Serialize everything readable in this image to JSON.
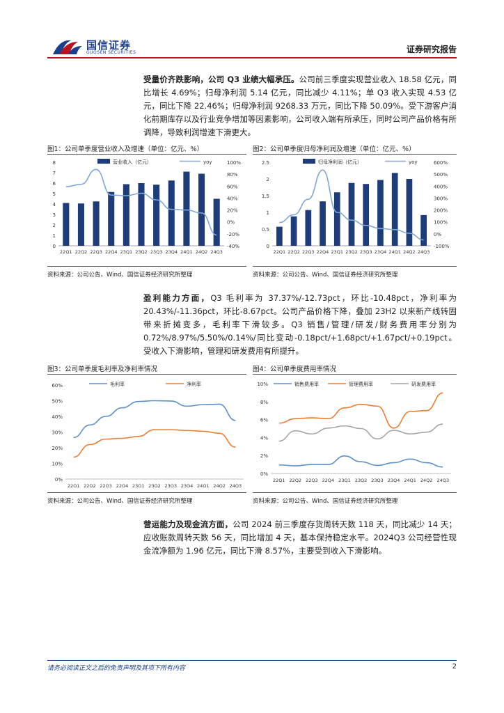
{
  "header": {
    "logo_cn": "国信证券",
    "logo_en": "GUOSEN SECURITIES",
    "report_type": "证券研究报告"
  },
  "paragraphs": {
    "p1_bold": "受量价齐跌影响，公司 Q3 业绩大幅承压。",
    "p1_rest": "公司前三季度实现营业收入 18.58 亿元，同比增长 4.69%；归母净利润 5.14 亿元，同比减少 4.11%；单 Q3 收入实现 4.53 亿元，同比下降 22.46%；归母净利润 9268.33 万元，同比下降 50.09%。受下游客户消化前期库存以及行业竞争增加等因素影响，公司收入端有所承压，同时公司产品价格有所调降，导致利润增速下滑更大。",
    "p2_bold": "盈利能力方面，",
    "p2_rest": "Q3 毛利率为 37.37%/-12.73pct，环比-10.48pct，净利率为 20.43%/-11.36pct，环比-8.67pct。公司产品价格下降，叠加 23H2 以来新产线转固带来折摊变多，毛利率下滑较多。Q3 销售/管理/研发/财务费用率分别为 0.72%/8.97%/5.50%/0.14%/同比变动-0.18pct/+1.68pct/+1.67pct/+0.19pct。受收入下滑影响，管理和研发费用有所提升。",
    "p3_bold": "营运能力及现金流方面，",
    "p3_rest": "公司 2024 前三季度存货周转天数 118 天，同比减少 14 天；应收账款周转天数 56 天，同比增加 4 天，基本保持稳定水平。2024Q3 公司经营性现金流净额为 1.96 亿元，同比下滑 8.57%，主要受到收入下滑影响。"
  },
  "figures": {
    "fig1_title": "图1：公司单季度营业收入及增速（单位：亿元、%）",
    "fig2_title": "图2：公司单季度归母净利润及增速（单位：亿元、%）",
    "fig3_title": "图3：公司单季度毛利率及净利率情况",
    "fig4_title": "图4：公司单季度费用率情况",
    "source": "资料来源：公司公告、Wind、国信证券经济研究所整理"
  },
  "footer": {
    "disclaimer": "请务必阅读正文之后的免责声明及其项下所有内容",
    "page": "2"
  },
  "colors": {
    "brand_red": "#b7141e",
    "brand_blue": "#1b3f8c",
    "bar": "#1f3c7a",
    "line_blue": "#7ea7d8",
    "line_orange": "#ee7d31",
    "line_gray": "#a5a5a5",
    "line_steel": "#5b8fc8"
  },
  "chart_data": [
    {
      "type": "bar",
      "categories": [
        "22Q1",
        "22Q2",
        "22Q3",
        "22Q4",
        "23Q1",
        "23Q2",
        "23Q3",
        "23Q4",
        "24Q1",
        "24Q2",
        "24Q3"
      ],
      "series": [
        {
          "name": "营业收入（亿元）",
          "values": [
            4.1,
            4.05,
            4.25,
            5.15,
            5.9,
            6.0,
            5.85,
            6.25,
            7.1,
            6.9,
            4.5
          ]
        },
        {
          "name": "yoy",
          "values": [
            59,
            63,
            88,
            45,
            44,
            48,
            37,
            21,
            20,
            15,
            -22
          ]
        }
      ],
      "ylim_left": [
        0,
        8
      ],
      "ylim_right": [
        -40,
        100
      ],
      "left_ticks": [
        "0",
        "1",
        "2",
        "3",
        "4",
        "5",
        "6",
        "7",
        "8"
      ],
      "right_ticks": [
        "-40%",
        "-20%",
        "0%",
        "20%",
        "40%",
        "60%",
        "80%",
        "100%"
      ]
    },
    {
      "type": "bar",
      "categories": [
        "22Q1",
        "22Q2",
        "22Q3",
        "22Q4",
        "23Q1",
        "23Q2",
        "23Q3",
        "23Q4",
        "24Q1",
        "24Q2",
        "24Q3"
      ],
      "series": [
        {
          "name": "归母净利润（亿元）",
          "values": [
            0.57,
            0.88,
            1.07,
            1.33,
            1.6,
            1.88,
            1.85,
            1.97,
            2.18,
            2.0,
            0.92
          ]
        },
        {
          "name": "yoy",
          "values": [
            95,
            160,
            290,
            535,
            180,
            115,
            70,
            45,
            35,
            5,
            -50
          ]
        }
      ],
      "ylim_left": [
        0,
        2.5
      ],
      "ylim_right": [
        -100,
        600
      ],
      "left_ticks": [
        "0",
        "0.5",
        "1",
        "1.5",
        "2",
        "2.5"
      ],
      "right_ticks": [
        "-100%",
        "0%",
        "100%",
        "200%",
        "300%",
        "400%",
        "500%",
        "600%"
      ]
    },
    {
      "type": "line",
      "categories": [
        "22Q1",
        "22Q2",
        "22Q3",
        "22Q4",
        "23Q1",
        "23Q2",
        "23Q3",
        "23Q4",
        "24Q1",
        "24Q2",
        "24Q3"
      ],
      "series": [
        {
          "name": "毛利率",
          "values": [
            26.5,
            34.5,
            40,
            45.5,
            49.5,
            50,
            49.8,
            46.5,
            47.5,
            47.8,
            37.4
          ]
        },
        {
          "name": "净利率",
          "values": [
            14,
            22,
            25.5,
            26,
            27.2,
            31.5,
            31.5,
            31,
            30.5,
            29.2,
            20.4
          ]
        }
      ],
      "ylim": [
        0,
        60
      ],
      "ticks": [
        "0%",
        "10%",
        "20%",
        "30%",
        "40%",
        "50%",
        "60%"
      ]
    },
    {
      "type": "line",
      "categories": [
        "22Q1",
        "22Q2",
        "22Q3",
        "22Q4",
        "23Q1",
        "23Q2",
        "23Q3",
        "23Q4",
        "24Q1",
        "24Q2",
        "24Q3"
      ],
      "series": [
        {
          "name": "销售费用率",
          "values": [
            0.95,
            0.85,
            1.0,
            1.0,
            1.95,
            1.3,
            0.9,
            1.2,
            1.6,
            1.2,
            0.72
          ]
        },
        {
          "name": "管理费用率",
          "values": [
            5.6,
            6.1,
            6.2,
            6.1,
            7.3,
            7.7,
            7.5,
            5.05,
            6.9,
            7.0,
            8.97
          ]
        },
        {
          "name": "研发费用率",
          "values": [
            3.6,
            4.75,
            4.4,
            5.05,
            5.3,
            5.0,
            3.85,
            4.8,
            4.4,
            4.6,
            5.5
          ]
        }
      ],
      "ylim": [
        0,
        10
      ],
      "ticks": [
        "0%",
        "2%",
        "4%",
        "6%",
        "8%",
        "10%"
      ]
    }
  ]
}
